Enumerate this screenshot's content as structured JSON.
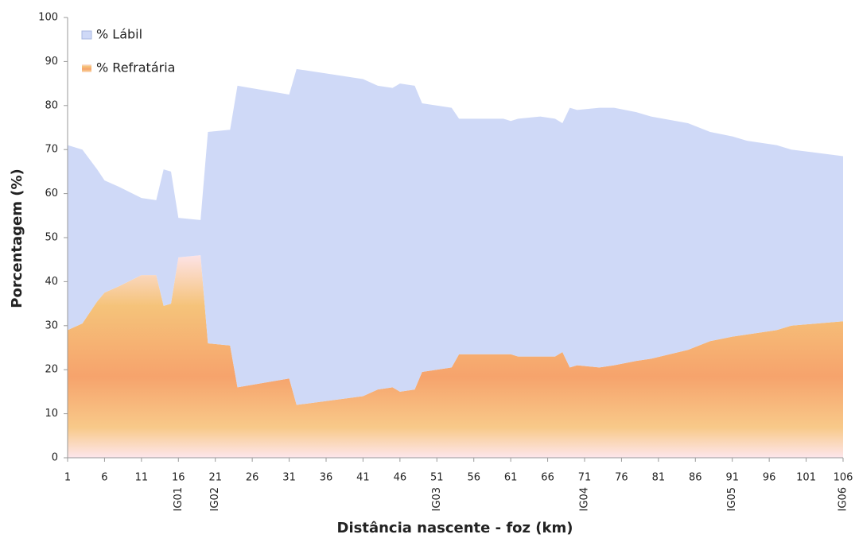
{
  "chart_data": {
    "type": "stacked-area",
    "x_label": "Distância nascente - foz (km)",
    "y_label": "Porcentagem  (%)",
    "x": [
      1,
      3,
      5,
      6,
      8,
      11,
      13,
      14,
      15,
      16,
      19,
      20,
      23,
      24,
      31,
      32,
      41,
      43,
      45,
      46,
      48,
      49,
      53,
      54,
      60,
      61,
      62,
      65,
      67,
      68,
      69,
      70,
      73,
      75,
      78,
      80,
      85,
      88,
      91,
      93,
      97,
      99,
      106
    ],
    "series": [
      {
        "name": "% Lábil",
        "color": "#cfd9f7",
        "values": [
          42,
          39.5,
          30,
          25.5,
          22.5,
          17.5,
          17,
          31,
          30,
          9,
          8,
          48,
          49,
          68.5,
          64.5,
          76.3,
          72,
          69,
          68,
          70,
          69,
          61,
          59,
          53.5,
          53.5,
          53,
          54,
          54.5,
          54,
          52,
          59,
          58,
          59,
          58.5,
          56.5,
          55,
          51.5,
          47.5,
          45.5,
          44,
          42,
          40,
          37.5
        ]
      },
      {
        "name": "% Refratária",
        "color": "#f6a36c",
        "values": [
          29,
          30.5,
          35.5,
          37.5,
          39,
          41.5,
          41.5,
          34.5,
          35,
          45.5,
          46,
          26,
          25.5,
          16,
          18,
          12,
          14,
          15.5,
          16,
          15,
          15.5,
          19.5,
          20.5,
          23.5,
          23.5,
          23.5,
          23,
          23,
          23,
          24,
          20.5,
          21,
          20.5,
          21,
          22,
          22.5,
          24.5,
          26.5,
          27.5,
          28,
          29,
          30,
          31
        ]
      }
    ],
    "xlim": [
      1,
      106
    ],
    "ylim": [
      0,
      100
    ],
    "xticks": [
      1,
      6,
      11,
      16,
      21,
      26,
      31,
      36,
      41,
      46,
      51,
      56,
      61,
      66,
      71,
      76,
      81,
      86,
      91,
      96,
      101,
      106
    ],
    "yticks": [
      0,
      10,
      20,
      30,
      40,
      50,
      60,
      70,
      80,
      90,
      100
    ],
    "annotations": [
      {
        "text": "IG01",
        "x": 16
      },
      {
        "text": "IG02",
        "x": 21
      },
      {
        "text": "IG03",
        "x": 51
      },
      {
        "text": "IG04",
        "x": 71
      },
      {
        "text": "IG05",
        "x": 91
      },
      {
        "text": "IG06",
        "x": 106
      }
    ],
    "legend": "top-left",
    "grid": false
  }
}
